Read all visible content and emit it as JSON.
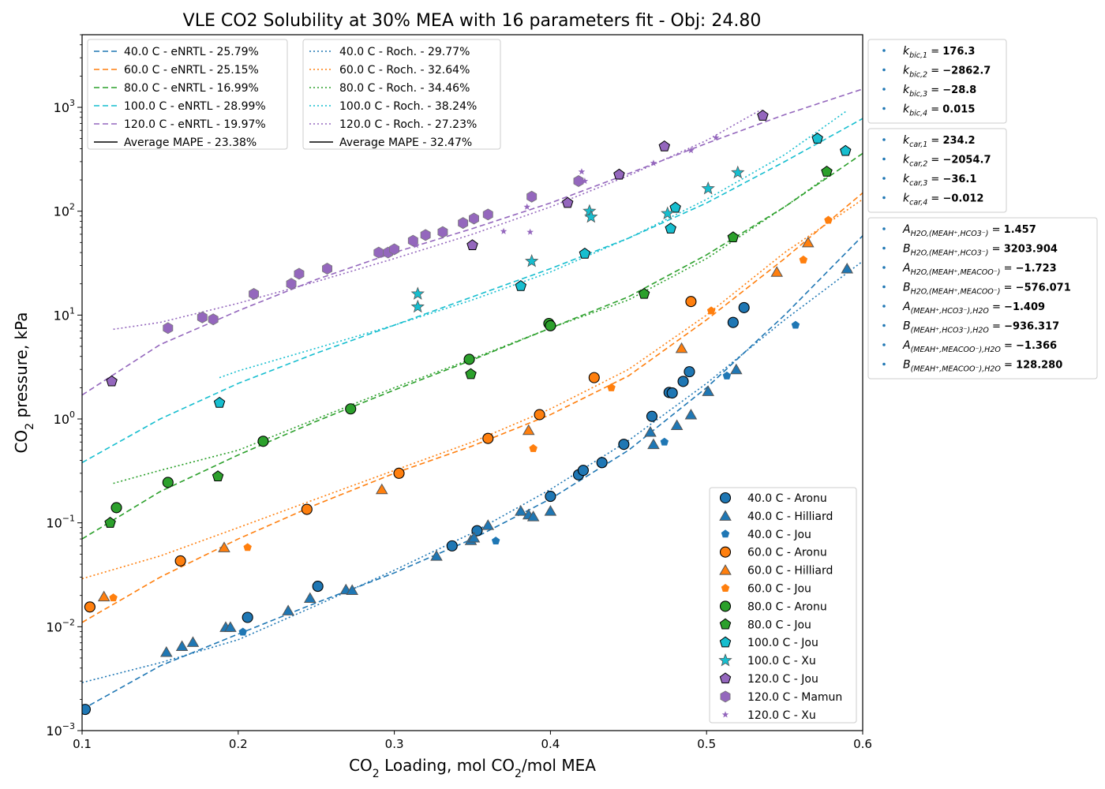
{
  "chart_data": {
    "type": "scatter",
    "title": "VLE CO2 Solubility at 30% MEA with 16 parameters fit - Obj: 24.80",
    "xlabel_parts": [
      "CO",
      "2",
      " Loading, mol CO",
      "2",
      "/mol MEA"
    ],
    "ylabel_parts": [
      "CO",
      "2",
      " pressure, kPa"
    ],
    "xlim": [
      0.1,
      0.6
    ],
    "ylim": [
      0.001,
      5000
    ],
    "yscale": "log",
    "grid": false,
    "x_ticks": [
      0.1,
      0.2,
      0.3,
      0.4,
      0.5,
      0.6
    ],
    "x_tick_labels": [
      "0.1",
      "0.2",
      "0.3",
      "0.4",
      "0.5",
      "0.6"
    ],
    "y_ticks": [
      {
        "value": 0.001,
        "base": "10",
        "exp": "−3"
      },
      {
        "value": 0.01,
        "base": "10",
        "exp": "−2"
      },
      {
        "value": 0.1,
        "base": "10",
        "exp": "−1"
      },
      {
        "value": 1,
        "base": "10",
        "exp": "0"
      },
      {
        "value": 10,
        "base": "10",
        "exp": "1"
      },
      {
        "value": 100,
        "base": "10",
        "exp": "2"
      },
      {
        "value": 1000,
        "base": "10",
        "exp": "3"
      }
    ],
    "colors": {
      "40": "#1f77b4",
      "60": "#ff7f0e",
      "80": "#2ca02c",
      "100": "#17becf",
      "120": "#9467bd"
    },
    "model_lines": [
      {
        "model": "eNRTL",
        "temp": "40",
        "style": "dashed",
        "x": [
          0.1,
          0.15,
          0.2,
          0.25,
          0.3,
          0.35,
          0.4,
          0.45,
          0.5,
          0.55,
          0.6
        ],
        "y": [
          0.0016,
          0.0042,
          0.0085,
          0.017,
          0.033,
          0.07,
          0.17,
          0.5,
          2.0,
          10,
          58
        ]
      },
      {
        "model": "eNRTL",
        "temp": "60",
        "style": "dashed",
        "x": [
          0.1,
          0.15,
          0.2,
          0.25,
          0.3,
          0.35,
          0.4,
          0.45,
          0.5,
          0.55,
          0.6
        ],
        "y": [
          0.011,
          0.03,
          0.07,
          0.15,
          0.3,
          0.55,
          1.1,
          2.6,
          9,
          35,
          150
        ]
      },
      {
        "model": "eNRTL",
        "temp": "80",
        "style": "dashed",
        "x": [
          0.1,
          0.15,
          0.2,
          0.25,
          0.3,
          0.35,
          0.4,
          0.45,
          0.5,
          0.55,
          0.6
        ],
        "y": [
          0.07,
          0.2,
          0.45,
          0.95,
          1.9,
          3.7,
          7.5,
          15,
          38,
          110,
          360
        ]
      },
      {
        "model": "eNRTL",
        "temp": "100",
        "style": "dashed",
        "x": [
          0.1,
          0.15,
          0.2,
          0.25,
          0.3,
          0.35,
          0.4,
          0.45,
          0.5,
          0.55,
          0.6
        ],
        "y": [
          0.38,
          1.0,
          2.2,
          4.3,
          8.0,
          15,
          28,
          55,
          120,
          300,
          780
        ]
      },
      {
        "model": "eNRTL",
        "temp": "120",
        "style": "dashed",
        "x": [
          0.1,
          0.15,
          0.2,
          0.25,
          0.3,
          0.35,
          0.4,
          0.45,
          0.5,
          0.55,
          0.6
        ],
        "y": [
          1.7,
          5.2,
          11,
          22,
          40,
          68,
          120,
          230,
          450,
          850,
          1500
        ]
      },
      {
        "model": "Roch.",
        "temp": "40",
        "style": "dotted",
        "x": [
          0.1,
          0.15,
          0.2,
          0.25,
          0.3,
          0.35,
          0.4,
          0.45,
          0.5,
          0.55,
          0.6
        ],
        "y": [
          0.0029,
          0.0045,
          0.0075,
          0.016,
          0.035,
          0.08,
          0.21,
          0.62,
          2.2,
          9,
          33
        ]
      },
      {
        "model": "Roch.",
        "temp": "60",
        "style": "dotted",
        "x": [
          0.1,
          0.15,
          0.2,
          0.25,
          0.3,
          0.35,
          0.4,
          0.45,
          0.5,
          0.55,
          0.6
        ],
        "y": [
          0.029,
          0.048,
          0.09,
          0.17,
          0.32,
          0.6,
          1.25,
          3.0,
          10,
          40,
          130
        ]
      },
      {
        "model": "Roch.",
        "temp": "80",
        "style": "dotted",
        "x": [
          0.12,
          0.15,
          0.2,
          0.25,
          0.3,
          0.35,
          0.4,
          0.45,
          0.5,
          0.55,
          0.58
        ],
        "y": [
          0.24,
          0.32,
          0.5,
          1.0,
          2.0,
          3.8,
          7.5,
          14,
          35,
          110,
          230
        ]
      },
      {
        "model": "Roch.",
        "temp": "100",
        "style": "dotted",
        "x": [
          0.188,
          0.2,
          0.25,
          0.3,
          0.35,
          0.4,
          0.45,
          0.5,
          0.55,
          0.59
        ],
        "y": [
          2.5,
          2.9,
          4.8,
          8.0,
          14,
          26,
          55,
          130,
          350,
          930
        ]
      },
      {
        "model": "Roch.",
        "temp": "120",
        "style": "dotted",
        "x": [
          0.12,
          0.15,
          0.2,
          0.25,
          0.3,
          0.35,
          0.4,
          0.45,
          0.5,
          0.535
        ],
        "y": [
          7.3,
          8.5,
          13,
          21,
          35,
          60,
          110,
          220,
          480,
          950
        ]
      }
    ],
    "series": [
      {
        "name": "40.0 C - Aronu",
        "temp": "40",
        "marker": "circle",
        "x": [
          0.102,
          0.206,
          0.251,
          0.337,
          0.353,
          0.4,
          0.418,
          0.421,
          0.433,
          0.447,
          0.465,
          0.476,
          0.478,
          0.485,
          0.489,
          0.517,
          0.524
        ],
        "y": [
          0.0016,
          0.0123,
          0.0245,
          0.06,
          0.084,
          0.18,
          0.29,
          0.32,
          0.38,
          0.57,
          1.06,
          1.8,
          1.78,
          2.3,
          2.85,
          8.5,
          11.8
        ]
      },
      {
        "name": "40.0 C - Hilliard",
        "temp": "40",
        "marker": "triangle",
        "x": [
          0.154,
          0.164,
          0.171,
          0.192,
          0.195,
          0.232,
          0.246,
          0.269,
          0.273,
          0.327,
          0.349,
          0.351,
          0.36,
          0.381,
          0.386,
          0.389,
          0.4,
          0.464,
          0.466,
          0.481,
          0.49,
          0.501,
          0.519,
          0.59
        ],
        "y": [
          0.0057,
          0.0065,
          0.0071,
          0.0099,
          0.0099,
          0.0143,
          0.0189,
          0.0228,
          0.0225,
          0.048,
          0.068,
          0.072,
          0.095,
          0.13,
          0.12,
          0.115,
          0.13,
          0.75,
          0.57,
          0.87,
          1.1,
          1.85,
          3.0,
          28
        ]
      },
      {
        "name": "40.0 C - Jou",
        "temp": "40",
        "marker": "pentagon-small",
        "x": [
          0.203,
          0.365,
          0.473,
          0.513,
          0.557
        ],
        "y": [
          0.0089,
          0.067,
          0.6,
          2.6,
          8.0
        ]
      },
      {
        "name": "60.0 C - Aronu",
        "temp": "60",
        "marker": "circle",
        "x": [
          0.105,
          0.163,
          0.244,
          0.303,
          0.36,
          0.393,
          0.428,
          0.49
        ],
        "y": [
          0.0155,
          0.043,
          0.135,
          0.3,
          0.65,
          1.1,
          2.5,
          13.5
        ]
      },
      {
        "name": "60.0 C - Hilliard",
        "temp": "60",
        "marker": "triangle",
        "x": [
          0.114,
          0.191,
          0.292,
          0.386,
          0.484,
          0.545,
          0.565
        ],
        "y": [
          0.0195,
          0.058,
          0.21,
          0.78,
          4.8,
          26,
          50
        ]
      },
      {
        "name": "60.0 C - Jou",
        "temp": "60",
        "marker": "pentagon-small",
        "x": [
          0.12,
          0.206,
          0.389,
          0.439,
          0.503,
          0.562,
          0.578
        ],
        "y": [
          0.019,
          0.058,
          0.52,
          2.0,
          11,
          34,
          82
        ]
      },
      {
        "name": "80.0 C - Aronu",
        "temp": "80",
        "marker": "circle",
        "x": [
          0.122,
          0.155,
          0.216,
          0.272,
          0.348,
          0.399,
          0.4
        ],
        "y": [
          0.14,
          0.245,
          0.61,
          1.25,
          3.75,
          8.3,
          7.9
        ]
      },
      {
        "name": "80.0 C - Jou",
        "temp": "80",
        "marker": "pentagon",
        "x": [
          0.118,
          0.187,
          0.349,
          0.46,
          0.517,
          0.577
        ],
        "y": [
          0.1,
          0.28,
          2.7,
          16,
          56,
          240
        ]
      },
      {
        "name": "100.0 C - Jou",
        "temp": "100",
        "marker": "pentagon",
        "x": [
          0.188,
          0.381,
          0.422,
          0.477,
          0.48,
          0.571,
          0.589
        ],
        "y": [
          1.43,
          19,
          39,
          68,
          108,
          500,
          380
        ]
      },
      {
        "name": "100.0 C - Xu",
        "temp": "100",
        "marker": "star",
        "x": [
          0.315,
          0.315,
          0.388,
          0.425,
          0.426,
          0.475,
          0.501,
          0.52
        ],
        "y": [
          12,
          16,
          33,
          100,
          88,
          95,
          165,
          235
        ]
      },
      {
        "name": "120.0 C - Jou",
        "temp": "120",
        "marker": "pentagon",
        "x": [
          0.119,
          0.35,
          0.411,
          0.444,
          0.473,
          0.536
        ],
        "y": [
          2.3,
          47,
          120,
          225,
          420,
          830
        ]
      },
      {
        "name": "120.0 C - Mamun",
        "temp": "120",
        "marker": "hexagon",
        "x": [
          0.155,
          0.177,
          0.184,
          0.21,
          0.234,
          0.239,
          0.257,
          0.29,
          0.296,
          0.3,
          0.312,
          0.32,
          0.331,
          0.344,
          0.351,
          0.36,
          0.388,
          0.418
        ],
        "y": [
          7.5,
          9.5,
          9.1,
          16,
          20,
          25,
          28,
          40,
          40,
          43,
          52,
          59,
          63,
          77,
          85,
          93,
          138,
          195
        ]
      },
      {
        "name": "120.0 C - Xu",
        "temp": "120",
        "marker": "star-small",
        "x": [
          0.314,
          0.37,
          0.385,
          0.387,
          0.42,
          0.422,
          0.466,
          0.49,
          0.506
        ],
        "y": [
          47,
          64,
          110,
          63,
          240,
          195,
          290,
          385,
          510
        ]
      }
    ],
    "legend_enrtl": {
      "entries": [
        "40.0 C - eNRTL - 25.79%",
        "60.0 C - eNRTL - 25.15%",
        "80.0 C - eNRTL - 16.99%",
        "100.0 C - eNRTL - 28.99%",
        "120.0 C - eNRTL - 19.97%"
      ],
      "average": "Average MAPE - 23.38%"
    },
    "legend_roch": {
      "entries": [
        "40.0 C - Roch. - 29.77%",
        "60.0 C - Roch. - 32.64%",
        "80.0 C - Roch. - 34.46%",
        "100.0 C - Roch. - 38.24%",
        "120.0 C - Roch. - 27.23%"
      ],
      "average": "Average MAPE - 32.47%"
    },
    "params": [
      [
        {
          "sym": "k",
          "sub": "bic,1",
          "val": "176.3"
        },
        {
          "sym": "k",
          "sub": "bic,2",
          "val": "−2862.7"
        },
        {
          "sym": "k",
          "sub": "bic,3",
          "val": "−28.8"
        },
        {
          "sym": "k",
          "sub": "bic,4",
          "val": "0.015"
        }
      ],
      [
        {
          "sym": "k",
          "sub": "car,1",
          "val": "234.2"
        },
        {
          "sym": "k",
          "sub": "car,2",
          "val": "−2054.7"
        },
        {
          "sym": "k",
          "sub": "car,3",
          "val": "−36.1"
        },
        {
          "sym": "k",
          "sub": "car,4",
          "val": "−0.012"
        }
      ],
      [
        {
          "sym": "A",
          "sub": "H2O,(MEAH⁺,HCO3⁻)",
          "val": "1.457"
        },
        {
          "sym": "B",
          "sub": "H2O,(MEAH⁺,HCO3⁻)",
          "val": "3203.904"
        },
        {
          "sym": "A",
          "sub": "H2O,(MEAH⁺,MEACOO⁻)",
          "val": "−1.723"
        },
        {
          "sym": "B",
          "sub": "H2O,(MEAH⁺,MEACOO⁻)",
          "val": "−576.071"
        },
        {
          "sym": "A",
          "sub": "(MEAH⁺,HCO3⁻),H2O",
          "val": "−1.409"
        },
        {
          "sym": "B",
          "sub": "(MEAH⁺,HCO3⁻),H2O",
          "val": "−936.317"
        },
        {
          "sym": "A",
          "sub": "(MEAH⁺,MEACOO⁻),H2O",
          "val": "−1.366"
        },
        {
          "sym": "B",
          "sub": "(MEAH⁺,MEACOO⁻),H2O",
          "val": "128.280"
        }
      ]
    ]
  }
}
